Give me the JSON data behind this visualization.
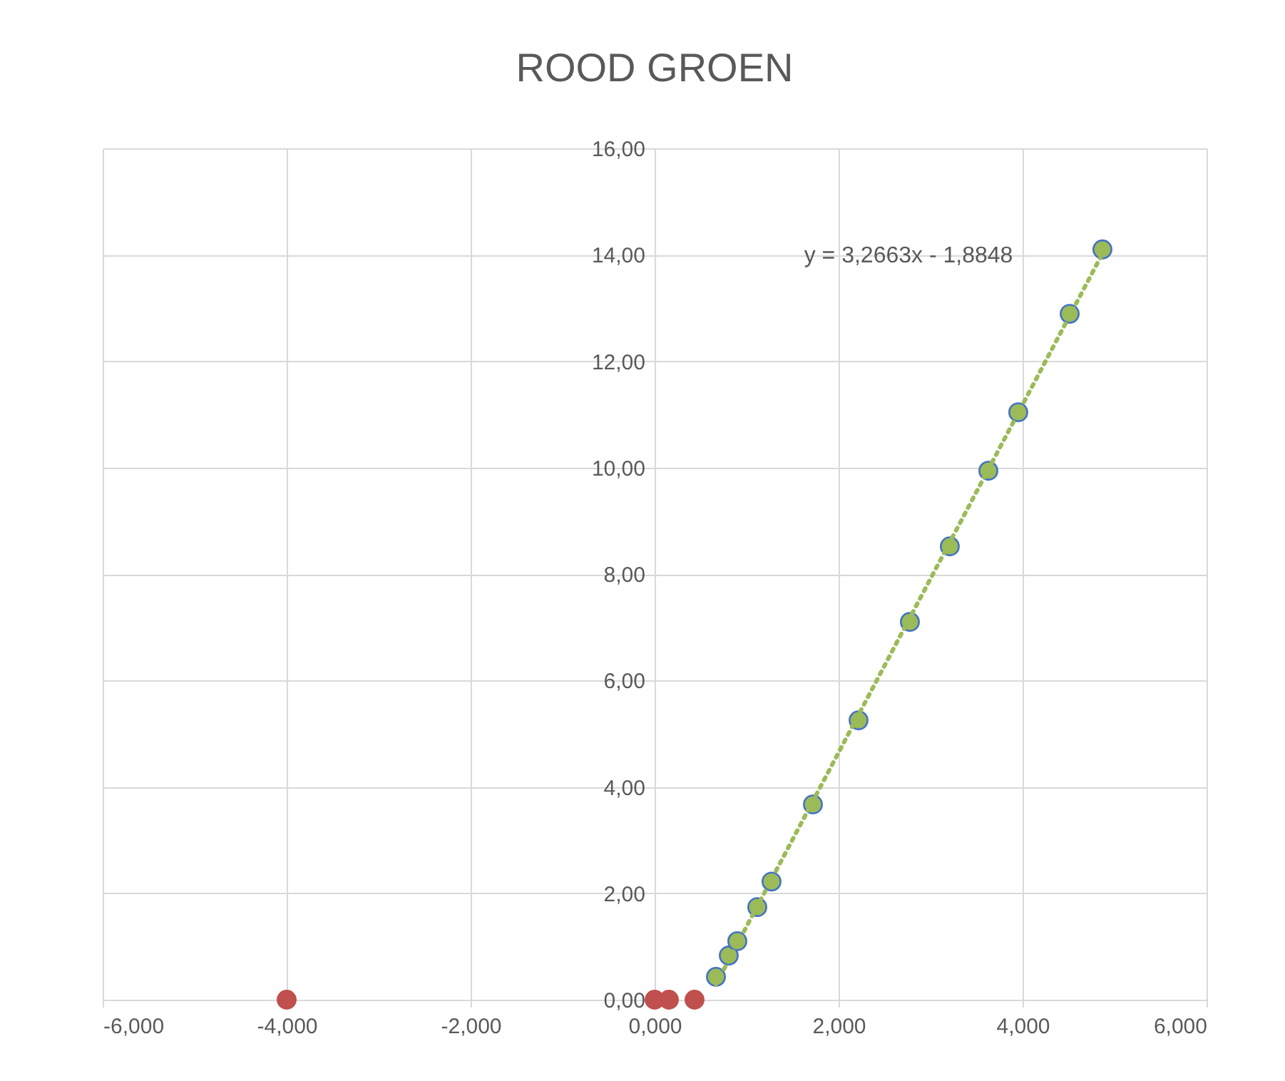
{
  "chart_data": {
    "type": "scatter",
    "title": "ROOD GROEN",
    "xlim": [
      -6,
      6
    ],
    "xticks": [
      {
        "value": -6,
        "label": "-6,000"
      },
      {
        "value": -4,
        "label": "-4,000"
      },
      {
        "value": -2,
        "label": "-2,000"
      },
      {
        "value": 0,
        "label": "0,000"
      },
      {
        "value": 2,
        "label": "2,000"
      },
      {
        "value": 4,
        "label": "4,000"
      },
      {
        "value": 6,
        "label": "6,000"
      }
    ],
    "ylim": [
      0,
      16
    ],
    "yticks": [
      {
        "value": 0,
        "label": "0,00"
      },
      {
        "value": 2,
        "label": "2,00"
      },
      {
        "value": 4,
        "label": "4,00"
      },
      {
        "value": 6,
        "label": "6,00"
      },
      {
        "value": 8,
        "label": "8,00"
      },
      {
        "value": 10,
        "label": "10,00"
      },
      {
        "value": 12,
        "label": "12,00"
      },
      {
        "value": 14,
        "label": "14,00"
      },
      {
        "value": 16,
        "label": "16,00"
      }
    ],
    "grid": true,
    "marker": "circle",
    "series": [
      {
        "color": "#9bbb59",
        "x": [
          0.667,
          0.806,
          0.899,
          1.116,
          1.271,
          1.721,
          2.217,
          2.775,
          3.209,
          3.628,
          3.953,
          4.512,
          4.868
        ],
        "values": [
          0.43,
          0.83,
          1.1,
          1.74,
          2.22,
          3.67,
          5.25,
          7.1,
          8.52,
          9.94,
          11.04,
          12.89,
          14.1
        ]
      },
      {
        "color": "#c0504d",
        "x": [
          -4.0,
          0.0,
          0.155,
          0.434
        ],
        "values": [
          0,
          0,
          0,
          0
        ]
      },
      {
        "type": "line",
        "color": "#9bbb59",
        "line_style": "dotted",
        "marker": "none",
        "x": [
          0.667,
          4.868
        ],
        "values": [
          0.29,
          14.02
        ]
      }
    ],
    "annotations": [
      "y = 3,2663x - 1,8848"
    ]
  }
}
